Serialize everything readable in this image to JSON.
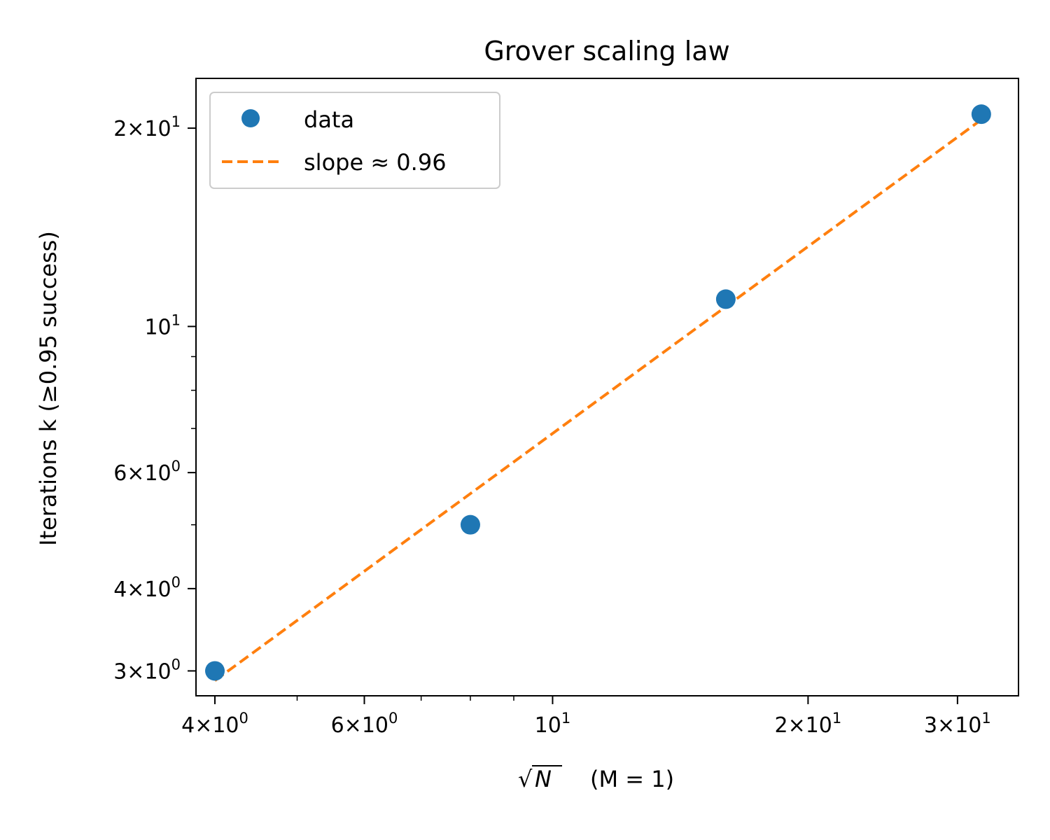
{
  "chart_data": {
    "type": "scatter",
    "title": "Grover scaling law",
    "xlabel": "√N",
    "xlabel_suffix": "(M = 1)",
    "ylabel": "Iterations k (≥0.95 success)",
    "x_scale": "log",
    "y_scale": "log",
    "xlim": [
      3.8,
      35.4
    ],
    "ylim": [
      2.75,
      23.8
    ],
    "grid": false,
    "legend_position": "top-left",
    "x_ticks": [
      {
        "value": 4,
        "mantissa": "4",
        "exponent": "0"
      },
      {
        "value": 6,
        "mantissa": "6",
        "exponent": "0"
      },
      {
        "value": 10,
        "mantissa": "",
        "exponent": "1"
      },
      {
        "value": 20,
        "mantissa": "2",
        "exponent": "1"
      },
      {
        "value": 30,
        "mantissa": "3",
        "exponent": "1"
      }
    ],
    "x_minor_ticks": [
      5,
      7,
      8,
      9
    ],
    "y_ticks": [
      {
        "value": 3,
        "mantissa": "3",
        "exponent": "0"
      },
      {
        "value": 4,
        "mantissa": "4",
        "exponent": "0"
      },
      {
        "value": 6,
        "mantissa": "6",
        "exponent": "0"
      },
      {
        "value": 10,
        "mantissa": "",
        "exponent": "1"
      },
      {
        "value": 20,
        "mantissa": "2",
        "exponent": "1"
      }
    ],
    "y_minor_ticks": [
      5,
      7,
      8,
      9
    ],
    "series": [
      {
        "name": "data",
        "kind": "scatter",
        "color": "#1f77b4",
        "x": [
          4,
          8,
          16,
          32
        ],
        "y": [
          3,
          5,
          11,
          21
        ]
      },
      {
        "name": "slope ≈ 0.96",
        "kind": "line",
        "style": "dashed",
        "color": "#ff7f0e",
        "x": [
          4,
          32
        ],
        "y": [
          2.9,
          20.6
        ]
      }
    ]
  }
}
